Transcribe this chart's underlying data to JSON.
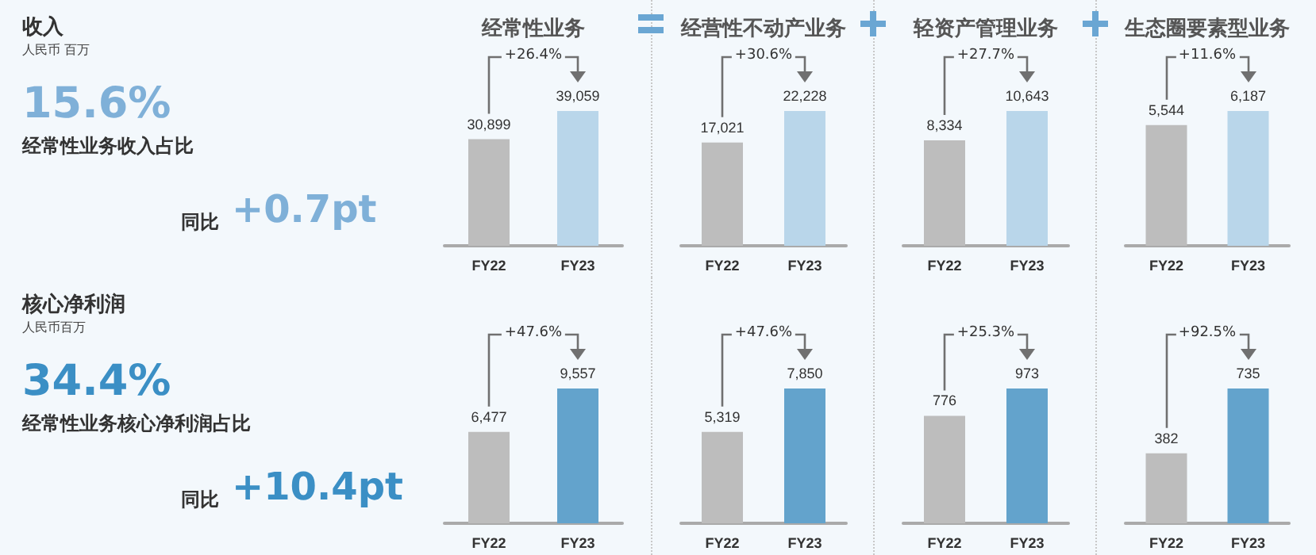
{
  "chart_data": [
    {
      "type": "other",
      "title": "收入",
      "subtitle": "人民币 百万",
      "annotations": [
        "15.6%",
        "经常性业务收入占比",
        "同比",
        "+0.7pt"
      ],
      "color": "#7fb0d8"
    },
    {
      "type": "bar",
      "title": "经常性业务",
      "categories": [
        "FY22",
        "FY23"
      ],
      "values": [
        30899,
        39059
      ],
      "value_labels": [
        "30,899",
        "39,059"
      ],
      "colors": [
        "#bdbdbd",
        "#b9d6ea"
      ],
      "annotations": [
        "+26.4%"
      ]
    },
    {
      "type": "bar",
      "title": "经营性不动产业务",
      "categories": [
        "FY22",
        "FY23"
      ],
      "values": [
        17021,
        22228
      ],
      "value_labels": [
        "17,021",
        "22,228"
      ],
      "colors": [
        "#bdbdbd",
        "#b9d6ea"
      ],
      "annotations": [
        "+30.6%"
      ]
    },
    {
      "type": "bar",
      "title": "轻资产管理业务",
      "categories": [
        "FY22",
        "FY23"
      ],
      "values": [
        8334,
        10643
      ],
      "value_labels": [
        "8,334",
        "10,643"
      ],
      "colors": [
        "#bdbdbd",
        "#b9d6ea"
      ],
      "annotations": [
        "+27.7%"
      ]
    },
    {
      "type": "bar",
      "title": "生态圈要素型业务",
      "categories": [
        "FY22",
        "FY23"
      ],
      "values": [
        5544,
        6187
      ],
      "value_labels": [
        "5,544",
        "6,187"
      ],
      "colors": [
        "#bdbdbd",
        "#b9d6ea"
      ],
      "annotations": [
        "+11.6%"
      ]
    },
    {
      "type": "other",
      "title": "核心净利润",
      "subtitle": "人民币百万",
      "annotations": [
        "34.4%",
        "经常性业务核心净利润占比",
        "同比",
        "+10.4pt"
      ],
      "color": "#3b8fc5"
    },
    {
      "type": "bar",
      "categories": [
        "FY22",
        "FY23"
      ],
      "values": [
        6477,
        9557
      ],
      "value_labels": [
        "6,477",
        "9,557"
      ],
      "colors": [
        "#bdbdbd",
        "#63a3cc"
      ],
      "annotations": [
        "+47.6%"
      ]
    },
    {
      "type": "bar",
      "categories": [
        "FY22",
        "FY23"
      ],
      "values": [
        5319,
        7850
      ],
      "value_labels": [
        "5,319",
        "7,850"
      ],
      "colors": [
        "#bdbdbd",
        "#63a3cc"
      ],
      "annotations": [
        "+47.6%"
      ]
    },
    {
      "type": "bar",
      "categories": [
        "FY22",
        "FY23"
      ],
      "values": [
        776,
        973
      ],
      "value_labels": [
        "776",
        "973"
      ],
      "colors": [
        "#bdbdbd",
        "#63a3cc"
      ],
      "annotations": [
        "+25.3%"
      ]
    },
    {
      "type": "bar",
      "categories": [
        "FY22",
        "FY23"
      ],
      "values": [
        382,
        735
      ],
      "value_labels": [
        "382",
        "735"
      ],
      "colors": [
        "#bdbdbd",
        "#63a3cc"
      ],
      "annotations": [
        "+92.5%"
      ]
    }
  ]
}
